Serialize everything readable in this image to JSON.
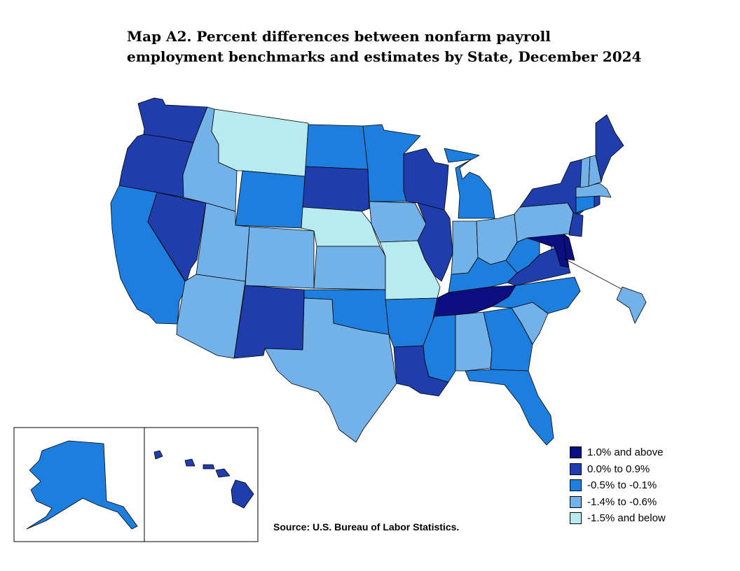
{
  "title": {
    "line1": "Map A2. Percent differences between nonfarm payroll",
    "line2": "employment benchmarks and estimates by State, December 2024"
  },
  "legend": [
    {
      "label": "1.0% and above",
      "color": "#0b0f7f"
    },
    {
      "label": "0.0% to 0.9%",
      "color": "#1f3eac"
    },
    {
      "label": "-0.5% to -0.1%",
      "color": "#1e7edd"
    },
    {
      "label": "-1.4% to -0.6%",
      "color": "#72b2e8"
    },
    {
      "label": "-1.5% and below",
      "color": "#b8ebef"
    }
  ],
  "state_categories": {
    "WA": 1,
    "OR": 1,
    "CA": 2,
    "NV": 1,
    "ID": 3,
    "MT": 4,
    "WY": 2,
    "UT": 3,
    "AZ": 3,
    "CO": 3,
    "NM": 1,
    "ND": 2,
    "SD": 1,
    "NE": 4,
    "KS": 3,
    "OK": 2,
    "TX": 3,
    "MN": 2,
    "IA": 3,
    "MO": 4,
    "AR": 2,
    "LA": 1,
    "WI": 1,
    "IL": 1,
    "MI": 2,
    "IN": 3,
    "OH": 3,
    "KY": 2,
    "TN": 0,
    "MS": 2,
    "AL": 3,
    "GA": 2,
    "FL": 2,
    "SC": 3,
    "NC": 2,
    "VA": 1,
    "WV": 2,
    "MD": 0,
    "DE": 0,
    "DC": 3,
    "PA": 3,
    "NY": 1,
    "NJ": 1,
    "CT": 2,
    "RI": 1,
    "MA": 3,
    "VT": 3,
    "NH": 3,
    "ME": 1,
    "AK": 2,
    "HI": 1
  },
  "source": "Source:  U.S. Bureau of Labor Statistics."
}
